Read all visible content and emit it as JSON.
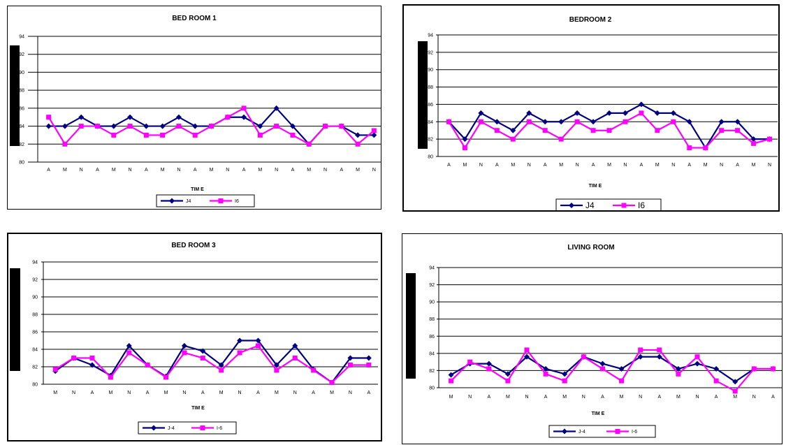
{
  "colors": {
    "series1": "#000080",
    "series2": "#ff00ff",
    "grid": "#000000"
  },
  "chart_data": [
    {
      "type": "line",
      "title": "BED ROOM 1",
      "xlabel": "TIM E",
      "ylabel": "",
      "ylim": [
        80,
        94
      ],
      "yticks": [
        80,
        82,
        84,
        86,
        88,
        90,
        92,
        94
      ],
      "grid": "horizontal",
      "legend_position": "bottom",
      "categories": [
        "A",
        "M",
        "N",
        "A",
        "M",
        "N",
        "A",
        "M",
        "N",
        "A",
        "M",
        "N",
        "A",
        "M",
        "N",
        "A",
        "M",
        "N",
        "A",
        "M",
        "N"
      ],
      "series": [
        {
          "name": "J4",
          "values": [
            84,
            84,
            85,
            84,
            84,
            85,
            84,
            84,
            85,
            84,
            84,
            85,
            85,
            84,
            86,
            84,
            82,
            84,
            84,
            83,
            83
          ]
        },
        {
          "name": "I6",
          "values": [
            85,
            82,
            84,
            84,
            83,
            84,
            83,
            83,
            84,
            83,
            84,
            85,
            86,
            83,
            84,
            83,
            82,
            84,
            84,
            82,
            83.5
          ]
        }
      ]
    },
    {
      "type": "line",
      "title": "BEDROOM 2",
      "xlabel": "TIM E",
      "ylabel": "",
      "ylim": [
        80,
        94
      ],
      "yticks": [
        80,
        82,
        84,
        86,
        88,
        90,
        92,
        94
      ],
      "grid": "horizontal",
      "legend_position": "bottom",
      "categories": [
        "A",
        "M",
        "N",
        "A",
        "M",
        "N",
        "A",
        "M",
        "N",
        "A",
        "M",
        "N",
        "A",
        "M",
        "N",
        "A",
        "M",
        "N",
        "A",
        "M",
        "N"
      ],
      "series": [
        {
          "name": "J4",
          "values": [
            84,
            82,
            85,
            84,
            83,
            85,
            84,
            84,
            85,
            84,
            85,
            85,
            86,
            85,
            85,
            84,
            81,
            84,
            84,
            82,
            82
          ]
        },
        {
          "name": "I6",
          "values": [
            84,
            81,
            84,
            83,
            82,
            84,
            83,
            82,
            84,
            83,
            83,
            84,
            85,
            83,
            84,
            81,
            81,
            83,
            83,
            81.5,
            82
          ]
        }
      ]
    },
    {
      "type": "line",
      "title": "BED ROOM 3",
      "xlabel": "TIM E",
      "ylabel": "",
      "ylim": [
        80,
        94
      ],
      "yticks": [
        80,
        82,
        84,
        86,
        88,
        90,
        92,
        94
      ],
      "grid": "horizontal",
      "legend_position": "bottom",
      "categories": [
        "M",
        "N",
        "A",
        "M",
        "N",
        "A",
        "M",
        "N",
        "A",
        "M",
        "N",
        "A",
        "M",
        "N",
        "A",
        "M",
        "N",
        "A"
      ],
      "series": [
        {
          "name": "J-4",
          "values": [
            81.5,
            83,
            82.2,
            81,
            84.4,
            82.2,
            80.9,
            84.4,
            83.8,
            82.2,
            85,
            85,
            82.2,
            84.4,
            81.7,
            80.2,
            83,
            83
          ]
        },
        {
          "name": "I-6",
          "values": [
            81.7,
            83,
            83,
            80.8,
            83.6,
            82.2,
            80.8,
            83.6,
            83,
            81.6,
            83.6,
            84.4,
            81.6,
            83,
            81.6,
            80.2,
            82.2,
            82.2
          ]
        }
      ]
    },
    {
      "type": "line",
      "title": "LIVING ROOM",
      "xlabel": "TIM E",
      "ylabel": "",
      "ylim": [
        80,
        94
      ],
      "yticks": [
        80,
        82,
        84,
        86,
        88,
        90,
        92,
        94
      ],
      "grid": "horizontal",
      "legend_position": "bottom",
      "categories": [
        "M",
        "N",
        "A",
        "M",
        "N",
        "A",
        "M",
        "N",
        "A",
        "M",
        "N",
        "A",
        "M",
        "N",
        "A",
        "M",
        "N",
        "A"
      ],
      "series": [
        {
          "name": "J-4",
          "values": [
            81.5,
            82.8,
            82.8,
            81.6,
            83.6,
            82.2,
            81.6,
            83.6,
            82.8,
            82.2,
            83.6,
            83.6,
            82.2,
            82.8,
            82.2,
            80.7,
            82.2,
            82.2
          ]
        },
        {
          "name": "I-6",
          "values": [
            80.8,
            83,
            82.2,
            80.8,
            84.4,
            81.6,
            80.8,
            83.6,
            82.2,
            80.8,
            84.4,
            84.4,
            81.6,
            83.6,
            80.8,
            79.6,
            82.2,
            82.2
          ]
        }
      ]
    }
  ]
}
